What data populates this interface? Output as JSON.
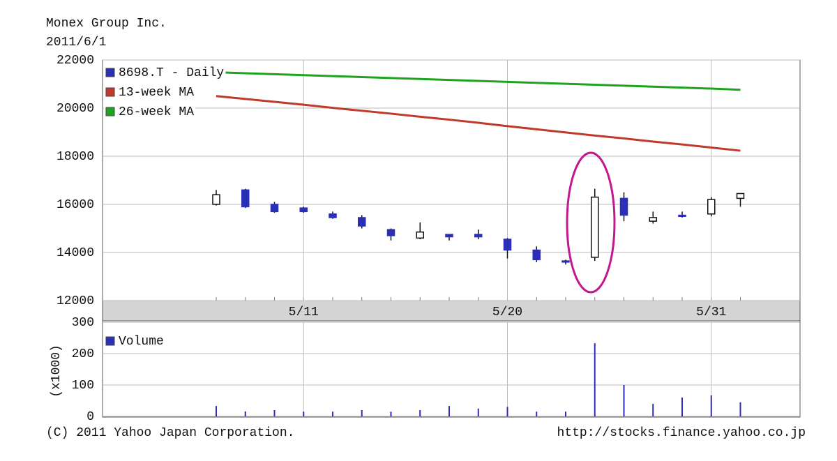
{
  "chart_data": [
    {
      "type": "candlestick",
      "title": "Monex Group Inc.",
      "subtitle": "2011/6/1",
      "categories": [
        null,
        null,
        null,
        "5/11",
        null,
        null,
        null,
        null,
        null,
        null,
        "5/20",
        null,
        null,
        null,
        null,
        null,
        null,
        "5/31",
        null
      ],
      "open": [
        16000,
        16600,
        16000,
        15850,
        15600,
        15450,
        14950,
        14600,
        14750,
        14750,
        14550,
        14100,
        13650,
        13800,
        16250,
        15300,
        15550,
        15600,
        16250
      ],
      "high": [
        16600,
        16650,
        16100,
        15900,
        15700,
        15550,
        15000,
        15250,
        14750,
        14950,
        14600,
        14250,
        13700,
        16650,
        16500,
        15700,
        15700,
        16300,
        16450
      ],
      "low": [
        15950,
        15850,
        15650,
        15650,
        15400,
        15000,
        14500,
        14550,
        14500,
        14550,
        13750,
        13600,
        13500,
        13650,
        15300,
        15200,
        15450,
        15500,
        15900
      ],
      "close": [
        16400,
        15900,
        15700,
        15700,
        15450,
        15100,
        14700,
        14850,
        14650,
        14650,
        14100,
        13700,
        13600,
        16300,
        15550,
        15450,
        15500,
        16200,
        16450
      ],
      "name": "8698.T - Daily",
      "up_color": "#ffffff",
      "down_color": "#2b2fb5",
      "series": [
        {
          "name": "13-week MA",
          "color": "#c0392b",
          "values": [
            20500,
            20380,
            20260,
            20140,
            20010,
            19890,
            19770,
            19640,
            19520,
            19390,
            19250,
            19120,
            18990,
            18860,
            18740,
            18610,
            18490,
            18360,
            18230
          ]
        },
        {
          "name": "26-week MA",
          "color": "#1fa31f",
          "values": [
            21490,
            21450,
            21410,
            21370,
            21330,
            21290,
            21250,
            21210,
            21170,
            21130,
            21090,
            21050,
            21010,
            20970,
            20930,
            20890,
            20850,
            20810,
            20760
          ]
        }
      ],
      "ylim": [
        12000,
        22000
      ],
      "yticks": [
        12000,
        14000,
        16000,
        18000,
        20000,
        22000
      ],
      "grid": true
    },
    {
      "type": "bar",
      "ylabel": "(x1000)",
      "name": "Volume",
      "color": "#2b2fb5",
      "values": [
        33,
        16,
        20,
        15,
        15,
        20,
        15,
        20,
        33,
        25,
        30,
        15,
        15,
        233,
        100,
        40,
        60,
        67,
        45
      ],
      "ylim": [
        0,
        300
      ],
      "yticks": [
        0,
        100,
        200,
        300
      ],
      "grid": true
    }
  ],
  "footer": {
    "copyright": "(C) 2011 Yahoo Japan Corporation.",
    "url": "http://stocks.finance.yahoo.co.jp"
  }
}
